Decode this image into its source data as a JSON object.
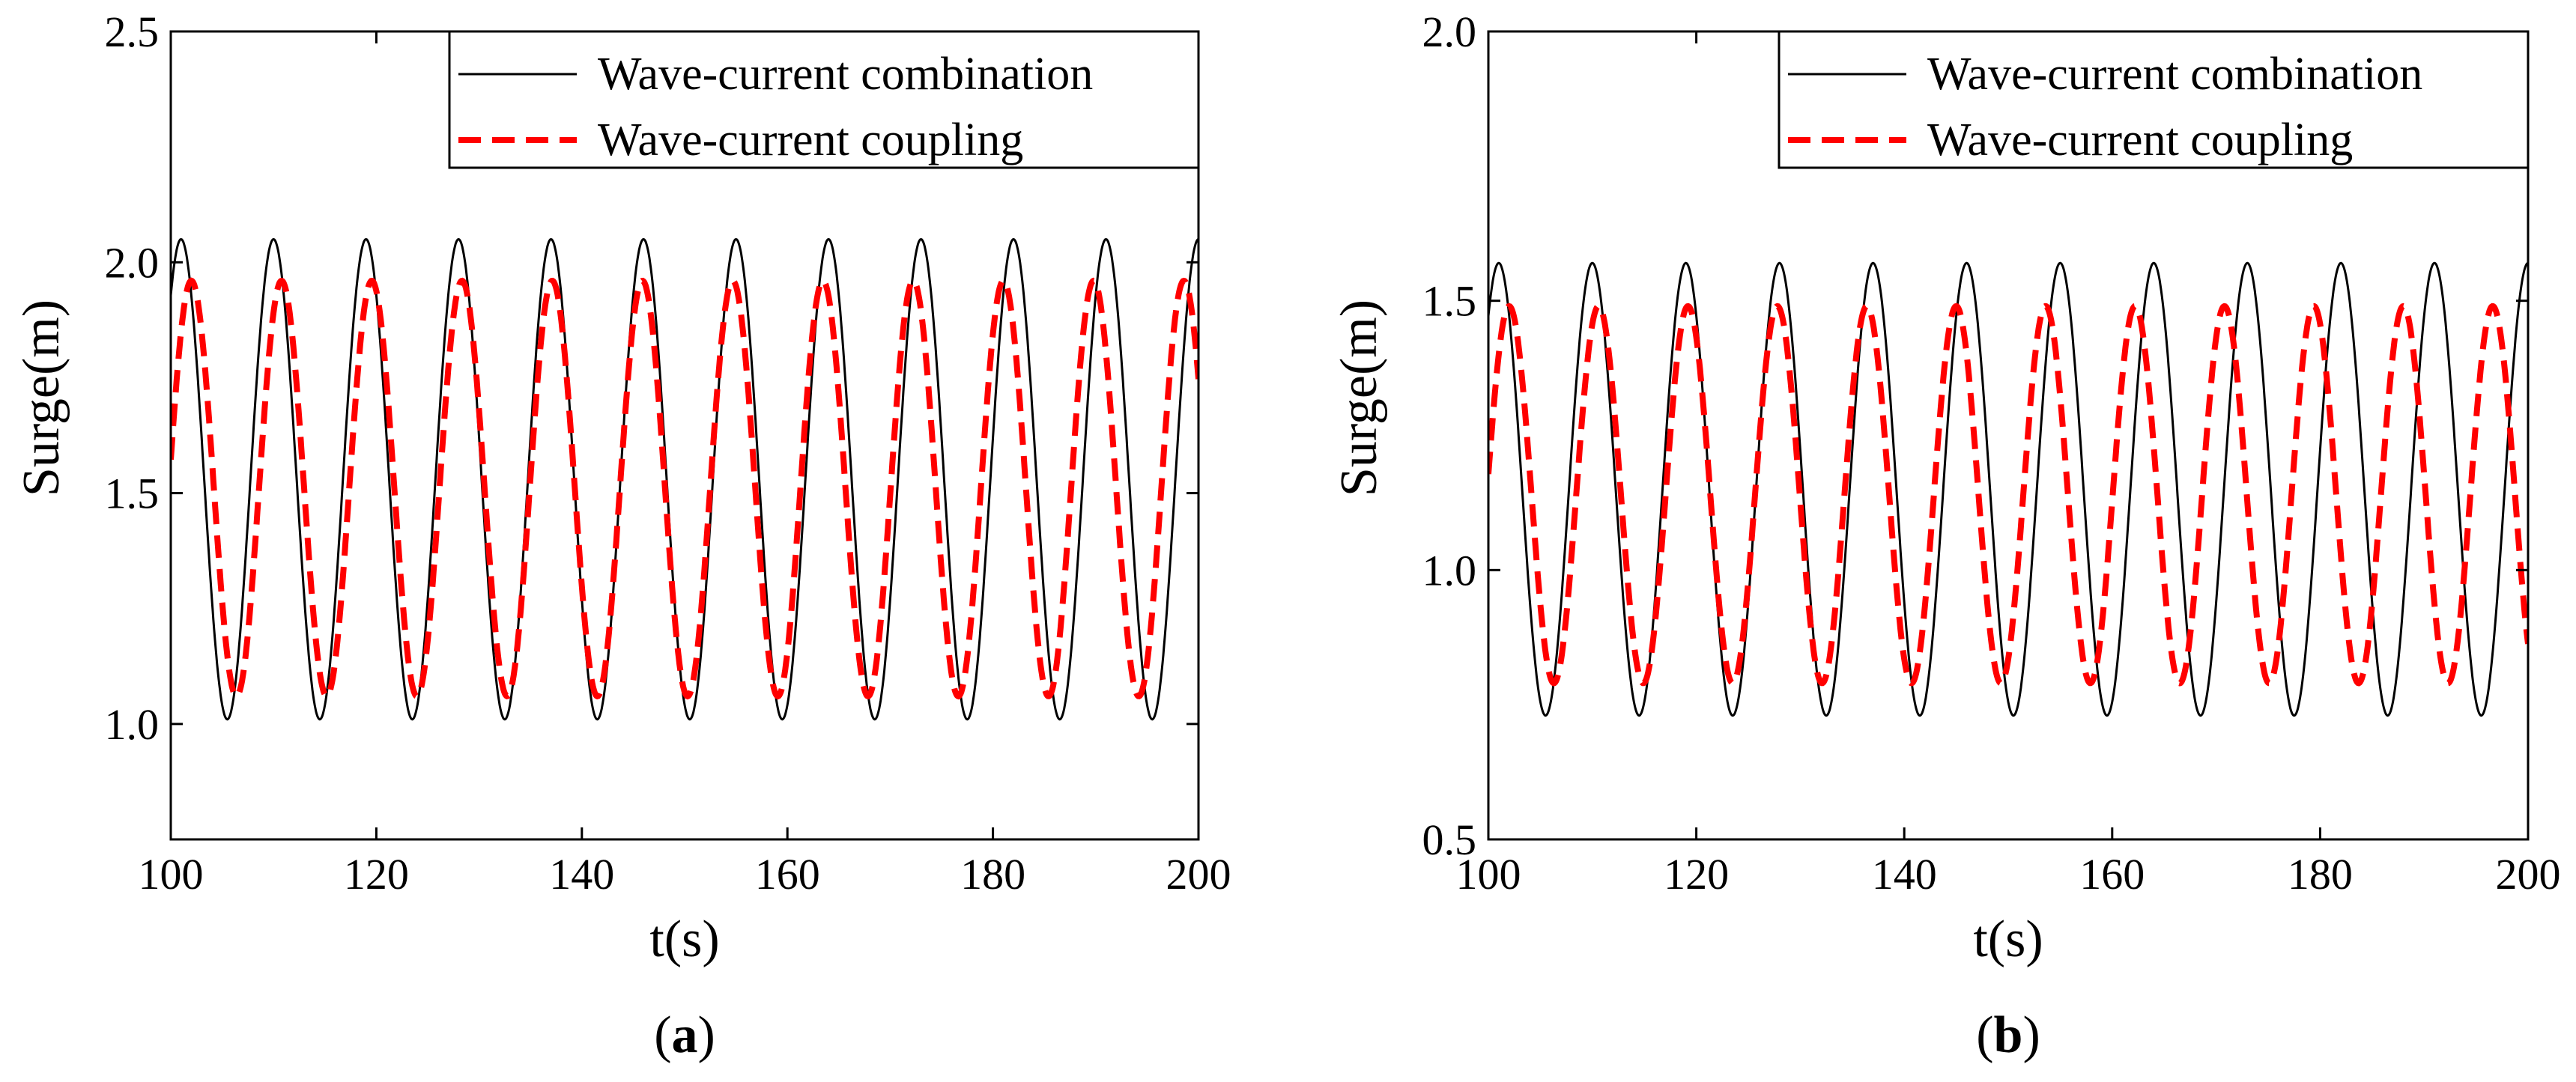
{
  "chart_data": [
    {
      "type": "line",
      "id": "a",
      "panel_label_open": "(",
      "panel_label_letter": "a",
      "panel_label_close": ")",
      "xlabel": "t(s)",
      "ylabel": "Surge(m)",
      "xlim": [
        100,
        200
      ],
      "ylim": [
        0.75,
        2.5
      ],
      "xticks": [
        100,
        120,
        140,
        160,
        180,
        200
      ],
      "xtick_labels": [
        "100",
        "120",
        "140",
        "160",
        "180",
        "200"
      ],
      "yticks": [
        1.0,
        1.5,
        2.0,
        2.5
      ],
      "ytick_labels": [
        "1.0",
        "1.5",
        "2.0",
        "2.5"
      ],
      "legend_position": "top-right",
      "series": [
        {
          "name": "Wave-current combination",
          "color": "#000000",
          "dash": "solid",
          "model": "sine",
          "mean": 1.53,
          "amplitude": 0.52,
          "period": 9.0,
          "first_peak_t": 101.0
        },
        {
          "name": "Wave-current coupling",
          "color": "#ff0000",
          "dash": "dashed",
          "model": "sine",
          "mean": 1.51,
          "amplitude": 0.45,
          "period": 8.78,
          "first_peak_t": 102.0
        }
      ]
    },
    {
      "type": "line",
      "id": "b",
      "panel_label_open": "(",
      "panel_label_letter": "b",
      "panel_label_close": ")",
      "xlabel": "t(s)",
      "ylabel": "Surge(m)",
      "xlim": [
        100,
        200
      ],
      "ylim": [
        0.5,
        2.0
      ],
      "xticks": [
        100,
        120,
        140,
        160,
        180,
        200
      ],
      "xtick_labels": [
        "100",
        "120",
        "140",
        "160",
        "180",
        "200"
      ],
      "yticks": [
        0.5,
        1.0,
        1.5,
        2.0
      ],
      "ytick_labels": [
        "0.5",
        "1.0",
        "1.5",
        "2.0"
      ],
      "legend_position": "top-right",
      "series": [
        {
          "name": "Wave-current combination",
          "color": "#000000",
          "dash": "solid",
          "model": "sine",
          "mean": 1.15,
          "amplitude": 0.42,
          "period": 9.0,
          "first_peak_t": 101.0
        },
        {
          "name": "Wave-current coupling",
          "color": "#ff0000",
          "dash": "dashed",
          "model": "sine",
          "mean": 1.14,
          "amplitude": 0.35,
          "period": 8.6,
          "first_peak_t": 102.0
        }
      ]
    }
  ]
}
